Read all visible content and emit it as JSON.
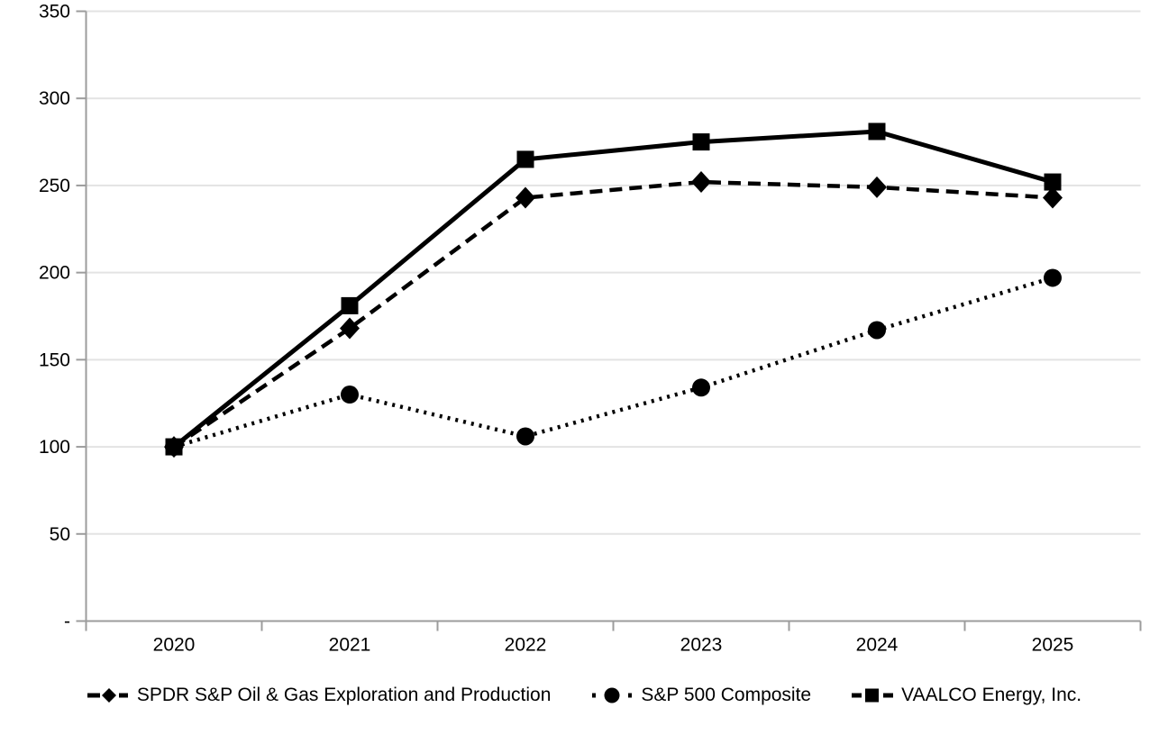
{
  "chart_data": {
    "type": "line",
    "title": "",
    "xlabel": "",
    "ylabel": "",
    "x": [
      "2020",
      "2021",
      "2022",
      "2023",
      "2024",
      "2025"
    ],
    "series": [
      {
        "name": "SPDR S&P Oil & Gas Exploration and Production",
        "marker": "diamond",
        "line_style": "dashed",
        "values": [
          100,
          168,
          243,
          252,
          249,
          243
        ]
      },
      {
        "name": "S&P 500 Composite",
        "marker": "circle",
        "line_style": "dotted",
        "values": [
          100,
          130,
          106,
          134,
          167,
          197
        ]
      },
      {
        "name": "VAALCO Energy, Inc.",
        "marker": "square",
        "line_style": "solid",
        "values": [
          100,
          181,
          265,
          275,
          281,
          252
        ]
      }
    ],
    "ylim": [
      0,
      350
    ],
    "y_ticks": [
      {
        "value": 0,
        "label": "-"
      },
      {
        "value": 50,
        "label": "50"
      },
      {
        "value": 100,
        "label": "100"
      },
      {
        "value": 150,
        "label": "150"
      },
      {
        "value": 200,
        "label": "200"
      },
      {
        "value": 250,
        "label": "250"
      },
      {
        "value": 300,
        "label": "300"
      },
      {
        "value": 350,
        "label": "350"
      }
    ],
    "grid": true,
    "legend_position": "bottom",
    "colors": {
      "series": "#000000",
      "gridline": "#e3e3e3",
      "axis": "#9c9c9c",
      "label": "#000000",
      "background": "#ffffff"
    }
  }
}
